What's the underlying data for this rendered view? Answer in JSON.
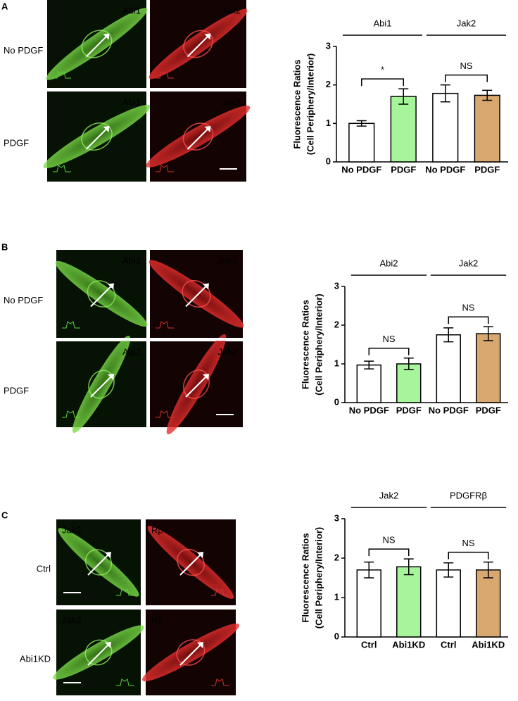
{
  "panels": [
    {
      "letter": "A",
      "rows": [
        "No PDGF",
        "PDGF"
      ],
      "image_labels": [
        "Abi1",
        "Jak2",
        "Abi1",
        "Jak2"
      ]
    },
    {
      "letter": "B",
      "rows": [
        "No PDGF",
        "PDGF"
      ],
      "image_labels": [
        "Abi2",
        "Jak2",
        "Abi2",
        "Jak2"
      ]
    },
    {
      "letter": "C",
      "rows": [
        "Ctrl",
        "Abi1KD"
      ],
      "image_labels": [
        "Jak2",
        "Rβ",
        "Jak2",
        "Rβ"
      ]
    }
  ],
  "chart_data": [
    {
      "type": "bar",
      "y_label": [
        "Fluorescence Ratios",
        "(Cell Periphery/Interior)"
      ],
      "categories": [
        "No PDGF",
        "PDGF",
        "No PDGF",
        "PDGF"
      ],
      "values": [
        1.0,
        1.7,
        1.78,
        1.73
      ],
      "errors": [
        0.07,
        0.2,
        0.22,
        0.13
      ],
      "colors": [
        "#ffffff",
        "#a6f59a",
        "#ffffff",
        "#d8a870"
      ],
      "group_labels": [
        "Abi1",
        "Jak2"
      ],
      "brackets": [
        "*",
        "NS"
      ],
      "ylim": [
        0,
        3
      ],
      "yticks": [
        0,
        1,
        2,
        3
      ]
    },
    {
      "type": "bar",
      "y_label": [
        "Fluorescence Ratios",
        "(Cell Periphery/Interior)"
      ],
      "categories": [
        "No PDGF",
        "PDGF",
        "No PDGF",
        "PDGF"
      ],
      "values": [
        0.97,
        1.0,
        1.75,
        1.78
      ],
      "errors": [
        0.1,
        0.15,
        0.18,
        0.18
      ],
      "colors": [
        "#ffffff",
        "#a6f59a",
        "#ffffff",
        "#d8a870"
      ],
      "group_labels": [
        "Abi2",
        "Jak2"
      ],
      "brackets": [
        "NS",
        "NS"
      ],
      "ylim": [
        0,
        3
      ],
      "yticks": [
        0,
        1,
        2,
        3
      ]
    },
    {
      "type": "bar",
      "y_label": [
        "Fluorescence Ratios",
        "(Cell Periphery/Interior)"
      ],
      "categories": [
        "Ctrl",
        "Abi1KD",
        "Ctrl",
        "Abi1KD"
      ],
      "values": [
        1.7,
        1.78,
        1.7,
        1.7
      ],
      "errors": [
        0.2,
        0.2,
        0.18,
        0.2
      ],
      "colors": [
        "#ffffff",
        "#a6f59a",
        "#ffffff",
        "#d8a870"
      ],
      "group_labels": [
        "Jak2",
        "PDGFRβ"
      ],
      "brackets": [
        "NS",
        "NS"
      ],
      "ylim": [
        0,
        3
      ],
      "yticks": [
        0,
        1,
        2,
        3
      ]
    }
  ]
}
